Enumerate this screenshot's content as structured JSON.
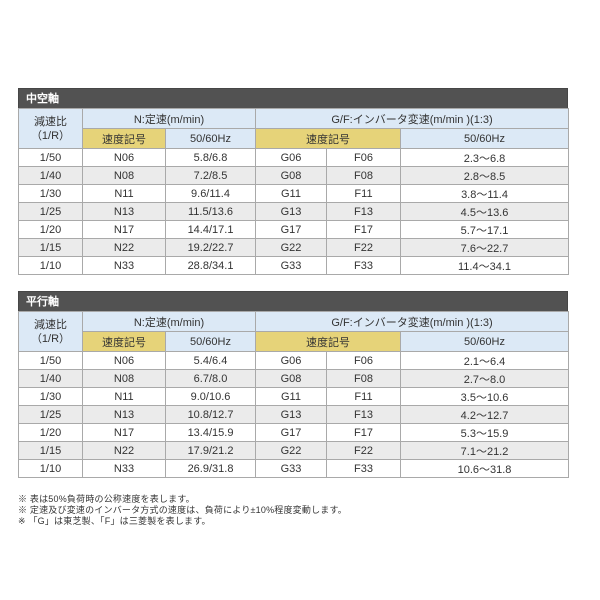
{
  "colors": {
    "title_bar_bg": "#525252",
    "title_bar_text": "#ffffff",
    "header_blue": "#dce9f6",
    "header_yellow": "#e6d379",
    "row_alt_gray": "#ebebeb",
    "border_gray": "#a9a9a9",
    "text": "#333333"
  },
  "headers": {
    "ratio": "減速比\n（1/R）",
    "n_group": "N:定速(m/min)",
    "gf_group": "G/F:インバータ変速(m/min )(1:3)",
    "speed_symbol": "速度記号",
    "hz": "50/60Hz"
  },
  "tables": [
    {
      "title": "中空軸",
      "rows": [
        {
          "ratio": "1/50",
          "n_code": "N06",
          "n_speed": "5.8/6.8",
          "g_code": "G06",
          "f_code": "F06",
          "gf_speed": "2.3～6.8"
        },
        {
          "ratio": "1/40",
          "n_code": "N08",
          "n_speed": "7.2/8.5",
          "g_code": "G08",
          "f_code": "F08",
          "gf_speed": "2.8～8.5"
        },
        {
          "ratio": "1/30",
          "n_code": "N11",
          "n_speed": "9.6/11.4",
          "g_code": "G11",
          "f_code": "F11",
          "gf_speed": "3.8～11.4"
        },
        {
          "ratio": "1/25",
          "n_code": "N13",
          "n_speed": "11.5/13.6",
          "g_code": "G13",
          "f_code": "F13",
          "gf_speed": "4.5～13.6"
        },
        {
          "ratio": "1/20",
          "n_code": "N17",
          "n_speed": "14.4/17.1",
          "g_code": "G17",
          "f_code": "F17",
          "gf_speed": "5.7～17.1"
        },
        {
          "ratio": "1/15",
          "n_code": "N22",
          "n_speed": "19.2/22.7",
          "g_code": "G22",
          "f_code": "F22",
          "gf_speed": "7.6～22.7"
        },
        {
          "ratio": "1/10",
          "n_code": "N33",
          "n_speed": "28.8/34.1",
          "g_code": "G33",
          "f_code": "F33",
          "gf_speed": "11.4～34.1"
        }
      ]
    },
    {
      "title": "平行軸",
      "rows": [
        {
          "ratio": "1/50",
          "n_code": "N06",
          "n_speed": "5.4/6.4",
          "g_code": "G06",
          "f_code": "F06",
          "gf_speed": "2.1～6.4"
        },
        {
          "ratio": "1/40",
          "n_code": "N08",
          "n_speed": "6.7/8.0",
          "g_code": "G08",
          "f_code": "F08",
          "gf_speed": "2.7～8.0"
        },
        {
          "ratio": "1/30",
          "n_code": "N11",
          "n_speed": "9.0/10.6",
          "g_code": "G11",
          "f_code": "F11",
          "gf_speed": "3.5～10.6"
        },
        {
          "ratio": "1/25",
          "n_code": "N13",
          "n_speed": "10.8/12.7",
          "g_code": "G13",
          "f_code": "F13",
          "gf_speed": "4.2～12.7"
        },
        {
          "ratio": "1/20",
          "n_code": "N17",
          "n_speed": "13.4/15.9",
          "g_code": "G17",
          "f_code": "F17",
          "gf_speed": "5.3～15.9"
        },
        {
          "ratio": "1/15",
          "n_code": "N22",
          "n_speed": "17.9/21.2",
          "g_code": "G22",
          "f_code": "F22",
          "gf_speed": "7.1～21.2"
        },
        {
          "ratio": "1/10",
          "n_code": "N33",
          "n_speed": "26.9/31.8",
          "g_code": "G33",
          "f_code": "F33",
          "gf_speed": "10.6～31.8"
        }
      ]
    }
  ],
  "footnotes": [
    "※ 表は50%負荷時の公称速度を表します。",
    "※ 定速及び変速のインバータ方式の速度は、負荷により±10%程度変動します。",
    "※ 「G」は東芝製、「F」は三菱製を表します。"
  ]
}
